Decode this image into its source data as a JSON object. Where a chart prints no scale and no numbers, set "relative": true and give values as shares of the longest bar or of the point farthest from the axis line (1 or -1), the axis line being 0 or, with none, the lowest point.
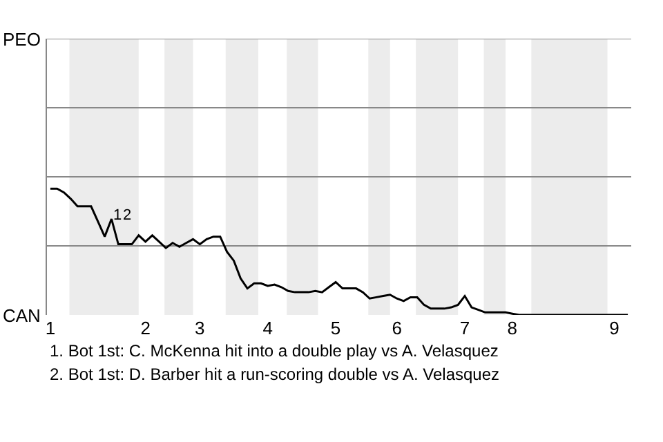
{
  "chart_data": {
    "type": "line",
    "relative": true,
    "categories": [
      "1",
      null,
      null,
      null,
      null,
      null,
      null,
      null,
      null,
      null,
      null,
      null,
      null,
      null,
      "2",
      null,
      null,
      null,
      null,
      null,
      null,
      null,
      "3",
      null,
      null,
      null,
      null,
      null,
      null,
      null,
      null,
      null,
      "4",
      null,
      null,
      null,
      null,
      null,
      null,
      null,
      null,
      null,
      "5",
      null,
      null,
      null,
      null,
      null,
      null,
      null,
      null,
      "6",
      null,
      null,
      null,
      null,
      null,
      null,
      null,
      null,
      null,
      "7",
      null,
      null,
      null,
      null,
      null,
      null,
      "8",
      null,
      null,
      null,
      null,
      null,
      null,
      null,
      null,
      null,
      null,
      null,
      null,
      null,
      null,
      "9",
      null,
      null
    ],
    "series": [
      {
        "color": "#000000",
        "values": [
          1,
          1,
          0.97,
          0.92,
          0.86,
          0.86,
          0.86,
          0.74,
          0.62,
          0.76,
          0.56,
          0.56,
          0.56,
          0.63,
          0.58,
          0.63,
          0.58,
          0.53,
          0.57,
          0.54,
          0.57,
          0.6,
          0.56,
          0.6,
          0.62,
          0.62,
          0.5,
          0.43,
          0.29,
          0.21,
          0.25,
          0.25,
          0.23,
          0.24,
          0.22,
          0.19,
          0.18,
          0.18,
          0.18,
          0.19,
          0.18,
          0.22,
          0.26,
          0.21,
          0.21,
          0.21,
          0.18,
          0.13,
          0.14,
          0.15,
          0.16,
          0.13,
          0.11,
          0.14,
          0.14,
          0.08,
          0.05,
          0.05,
          0.05,
          0.06,
          0.08,
          0.15,
          0.06,
          0.04,
          0.02,
          0.02,
          0.02,
          0.02,
          0.01,
          0,
          0,
          0,
          0,
          0,
          0,
          0,
          0,
          0,
          0,
          0,
          0,
          0,
          0,
          0,
          0,
          0
        ]
      }
    ],
    "ref_lines": [
      {
        "axis": "y",
        "value": 0.547,
        "color": "#888888"
      },
      {
        "axis": "y",
        "value": 1.094,
        "color": "#888888"
      },
      {
        "axis": "y",
        "value": 1.641,
        "color": "#888888"
      },
      {
        "axis": "y",
        "value": 2.188,
        "color": "#888888"
      }
    ],
    "annotations": [
      "PEO",
      "CAN",
      "1",
      "2",
      "1. Bot 1st: C. McKenna hit into a double play vs A. Velasquez",
      "2. Bot 1st: D. Barber hit a run-scoring double vs A. Velasquez"
    ],
    "marker": "none",
    "line_style": "solid"
  }
}
